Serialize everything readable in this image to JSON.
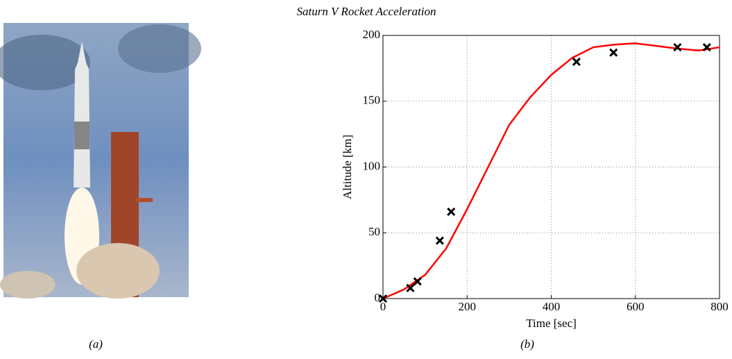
{
  "chart_data": {
    "type": "scatter",
    "title": "Saturn V Rocket Acceleration",
    "xlabel": "Time [sec]",
    "ylabel": "Altitude [km]",
    "xlim": [
      0,
      800
    ],
    "ylim": [
      0,
      200
    ],
    "xticks": [
      0,
      200,
      400,
      600,
      800
    ],
    "yticks": [
      0,
      50,
      100,
      150,
      200
    ],
    "grid": true,
    "series": [
      {
        "color": "#000000",
        "marker": "x",
        "x": [
          0,
          65,
          82,
          135,
          162,
          460,
          548,
          700,
          770
        ],
        "values": [
          0,
          8,
          13,
          44,
          66,
          180,
          187,
          191,
          191
        ]
      },
      {
        "color": "#ff0000",
        "marker": "line",
        "x": [
          0,
          50,
          100,
          150,
          200,
          250,
          300,
          350,
          400,
          450,
          500,
          550,
          600,
          650,
          700,
          750,
          800
        ],
        "values": [
          0,
          7,
          18,
          38,
          68,
          100,
          132,
          153,
          170,
          183,
          191,
          193,
          194,
          192,
          190,
          188.5,
          191
        ]
      }
    ]
  },
  "captions": [
    "(a)",
    "(b)"
  ]
}
